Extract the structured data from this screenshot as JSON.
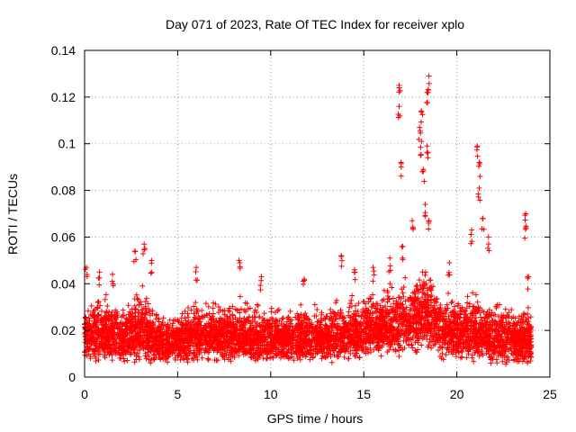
{
  "chart_data": {
    "type": "scatter",
    "title": "Day 071 of 2023, Rate Of TEC Index for receiver xplo",
    "xlabel": "GPS time / hours",
    "ylabel": "ROTI / TECUs",
    "xlim": [
      0,
      25
    ],
    "ylim": [
      0,
      0.14
    ],
    "x_ticks": [
      "0",
      "5",
      "10",
      "15",
      "20",
      "25"
    ],
    "y_ticks": [
      "0",
      "0.02",
      "0.04",
      "0.06",
      "0.08",
      "0.1",
      "0.12",
      "0.14"
    ],
    "grid": true,
    "marker": "+",
    "series_color": "#ff0000",
    "series": [
      {
        "name": "ROTI",
        "description": "Dense band of ROTI values (~0.005–0.035 TECU) across 0–24 h; envelope and notable peaks listed",
        "envelope": [
          {
            "x": 0.0,
            "low": 0.006,
            "high": 0.035
          },
          {
            "x": 1.0,
            "low": 0.006,
            "high": 0.04
          },
          {
            "x": 2.0,
            "low": 0.006,
            "high": 0.033
          },
          {
            "x": 3.0,
            "low": 0.004,
            "high": 0.045
          },
          {
            "x": 4.0,
            "low": 0.006,
            "high": 0.03
          },
          {
            "x": 5.0,
            "low": 0.006,
            "high": 0.03
          },
          {
            "x": 6.0,
            "low": 0.006,
            "high": 0.035
          },
          {
            "x": 7.0,
            "low": 0.006,
            "high": 0.035
          },
          {
            "x": 8.0,
            "low": 0.006,
            "high": 0.038
          },
          {
            "x": 9.0,
            "low": 0.006,
            "high": 0.033
          },
          {
            "x": 10.0,
            "low": 0.006,
            "high": 0.032
          },
          {
            "x": 11.0,
            "low": 0.006,
            "high": 0.032
          },
          {
            "x": 12.0,
            "low": 0.006,
            "high": 0.033
          },
          {
            "x": 13.0,
            "low": 0.006,
            "high": 0.034
          },
          {
            "x": 14.0,
            "low": 0.006,
            "high": 0.038
          },
          {
            "x": 15.0,
            "low": 0.007,
            "high": 0.04
          },
          {
            "x": 16.0,
            "low": 0.008,
            "high": 0.042
          },
          {
            "x": 17.0,
            "low": 0.008,
            "high": 0.045
          },
          {
            "x": 18.0,
            "low": 0.01,
            "high": 0.05
          },
          {
            "x": 18.5,
            "low": 0.012,
            "high": 0.05
          },
          {
            "x": 19.0,
            "low": 0.008,
            "high": 0.04
          },
          {
            "x": 20.0,
            "low": 0.006,
            "high": 0.038
          },
          {
            "x": 21.0,
            "low": 0.006,
            "high": 0.04
          },
          {
            "x": 22.0,
            "low": 0.005,
            "high": 0.034
          },
          {
            "x": 23.0,
            "low": 0.005,
            "high": 0.034
          },
          {
            "x": 24.0,
            "low": 0.005,
            "high": 0.033
          }
        ],
        "peaks": [
          {
            "x": 0.1,
            "y": 0.047
          },
          {
            "x": 0.8,
            "y": 0.045
          },
          {
            "x": 1.5,
            "y": 0.044
          },
          {
            "x": 2.7,
            "y": 0.054
          },
          {
            "x": 3.2,
            "y": 0.057
          },
          {
            "x": 3.6,
            "y": 0.05
          },
          {
            "x": 6.0,
            "y": 0.047
          },
          {
            "x": 8.3,
            "y": 0.05
          },
          {
            "x": 9.5,
            "y": 0.043
          },
          {
            "x": 11.8,
            "y": 0.042
          },
          {
            "x": 13.8,
            "y": 0.052
          },
          {
            "x": 14.5,
            "y": 0.046
          },
          {
            "x": 15.5,
            "y": 0.047
          },
          {
            "x": 16.4,
            "y": 0.051
          },
          {
            "x": 16.9,
            "y": 0.125
          },
          {
            "x": 16.9,
            "y": 0.116
          },
          {
            "x": 17.0,
            "y": 0.092
          },
          {
            "x": 17.1,
            "y": 0.056
          },
          {
            "x": 17.6,
            "y": 0.067
          },
          {
            "x": 18.0,
            "y": 0.107
          },
          {
            "x": 18.1,
            "y": 0.114
          },
          {
            "x": 18.1,
            "y": 0.101
          },
          {
            "x": 18.2,
            "y": 0.089
          },
          {
            "x": 18.3,
            "y": 0.074
          },
          {
            "x": 18.4,
            "y": 0.099
          },
          {
            "x": 18.4,
            "y": 0.122
          },
          {
            "x": 18.5,
            "y": 0.129
          },
          {
            "x": 18.5,
            "y": 0.067
          },
          {
            "x": 19.6,
            "y": 0.049
          },
          {
            "x": 20.8,
            "y": 0.063
          },
          {
            "x": 21.1,
            "y": 0.099
          },
          {
            "x": 21.2,
            "y": 0.092
          },
          {
            "x": 21.2,
            "y": 0.081
          },
          {
            "x": 21.4,
            "y": 0.068
          },
          {
            "x": 21.7,
            "y": 0.06
          },
          {
            "x": 23.7,
            "y": 0.07
          },
          {
            "x": 23.7,
            "y": 0.064
          },
          {
            "x": 23.8,
            "y": 0.043
          }
        ]
      }
    ]
  }
}
